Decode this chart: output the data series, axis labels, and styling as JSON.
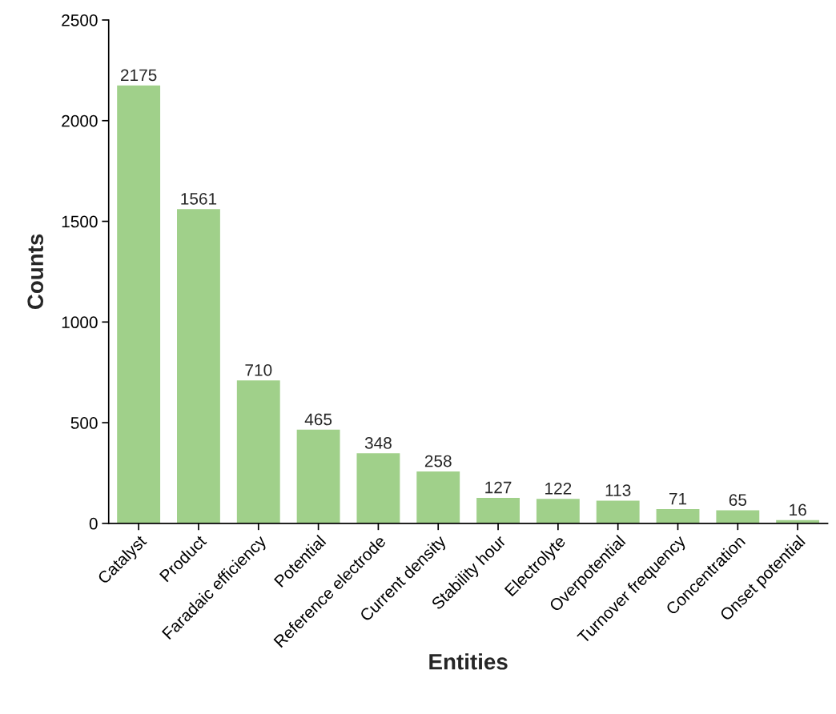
{
  "chart_data": {
    "type": "bar",
    "xlabel": "Entities",
    "ylabel": "Counts",
    "categories": [
      "Catalyst",
      "Product",
      "Faradaic efficiency",
      "Potential",
      "Reference electrode",
      "Current density",
      "Stability hour",
      "Electrolyte",
      "Overpotential",
      "Turnover frequency",
      "Concentration",
      "Onset potential"
    ],
    "values": [
      2175,
      1561,
      710,
      465,
      348,
      258,
      127,
      122,
      113,
      71,
      65,
      16
    ],
    "color": "#a0d08a",
    "ylim": [
      0,
      2500
    ],
    "yticks": [
      0,
      500,
      1000,
      1500,
      2000,
      2500
    ],
    "data_labels": true,
    "grid": false,
    "legend": false
  }
}
